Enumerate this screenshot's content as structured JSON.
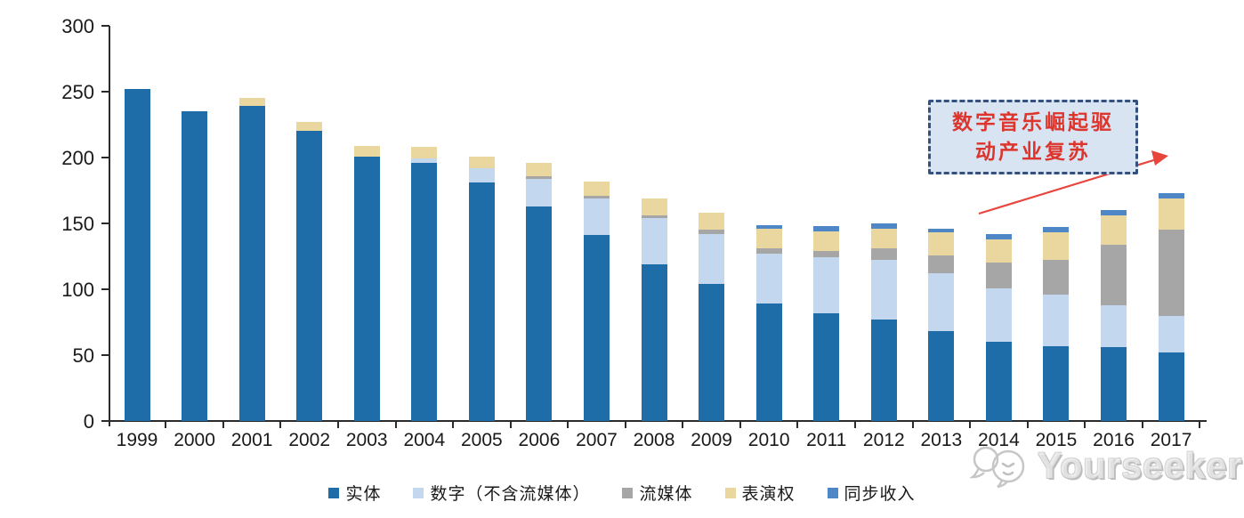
{
  "chart_data": {
    "type": "bar",
    "stacked": true,
    "title": "",
    "xlabel": "",
    "ylabel": "",
    "ylim": [
      0,
      300
    ],
    "y_ticks": [
      0,
      50,
      100,
      150,
      200,
      250,
      300
    ],
    "grid": false,
    "legend_position": "bottom",
    "x": [
      "1999",
      "2000",
      "2001",
      "2002",
      "2003",
      "2004",
      "2005",
      "2006",
      "2007",
      "2008",
      "2009",
      "2010",
      "2011",
      "2012",
      "2013",
      "2014",
      "2015",
      "2016",
      "2017"
    ],
    "series": [
      {
        "name": "实体",
        "color": "#1e6da8",
        "values": [
          252,
          235,
          239,
          220,
          201,
          196,
          181,
          163,
          141,
          119,
          104,
          89,
          82,
          77,
          68,
          60,
          57,
          56,
          52
        ]
      },
      {
        "name": "数字（不含流媒体）",
        "color": "#c3d7ee",
        "values": [
          0,
          0,
          0,
          0,
          0,
          3,
          11,
          21,
          28,
          35,
          38,
          38,
          42,
          45,
          44,
          41,
          39,
          32,
          28
        ]
      },
      {
        "name": "流媒体",
        "color": "#a6a6a6",
        "values": [
          0,
          0,
          0,
          0,
          0,
          0,
          0,
          2,
          2,
          2,
          3,
          4,
          5,
          9,
          14,
          19,
          26,
          46,
          65
        ]
      },
      {
        "name": "表演权",
        "color": "#e9d79f",
        "values": [
          0,
          0,
          6,
          7,
          8,
          9,
          9,
          10,
          11,
          13,
          13,
          15,
          15,
          15,
          17,
          18,
          21,
          22,
          24
        ]
      },
      {
        "name": "同步收入",
        "color": "#4e86c6",
        "values": [
          0,
          0,
          0,
          0,
          0,
          0,
          0,
          0,
          0,
          0,
          0,
          3,
          4,
          4,
          3,
          4,
          4,
          4,
          4
        ]
      }
    ]
  },
  "annotation": {
    "line1": "数字音乐崛起驱",
    "line2": "动产业复苏",
    "text_color": "#dd342c",
    "box_fill": "#d9e4f3",
    "box_border": "#33507e",
    "arrow_color": "#e8453d"
  },
  "watermark": {
    "text": "Yourseeker"
  },
  "axis": {
    "tick_color": "#2b2b2b"
  }
}
